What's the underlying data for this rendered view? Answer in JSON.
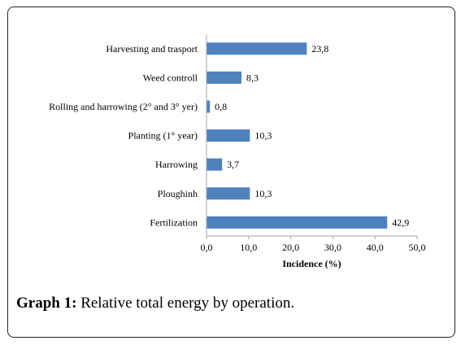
{
  "chart_data": {
    "type": "bar",
    "orientation": "horizontal",
    "categories": [
      "Harvesting and trasport",
      "Weed controll",
      "Rolling and harrowing (2° and 3° yer)",
      "Planting (1° year)",
      "Harrowing",
      "Ploughinh",
      "Fertilization"
    ],
    "values": [
      23.8,
      8.3,
      0.8,
      10.3,
      3.7,
      10.3,
      42.9
    ],
    "value_labels": [
      "23,8",
      "8,3",
      "0,8",
      "10,3",
      "3,7",
      "10,3",
      "42,9"
    ],
    "xlabel": "Incidence (%)",
    "ylabel": "",
    "xlim": [
      0,
      50
    ],
    "x_ticks": [
      0,
      10,
      20,
      30,
      40,
      50
    ],
    "x_tick_labels": [
      "0,0",
      "10,0",
      "20,0",
      "30,0",
      "40,0",
      "50,0"
    ],
    "grid": false,
    "bar_color": "#4f81bd"
  },
  "caption": {
    "label": "Graph 1:",
    "text": "Relative total energy by operation."
  }
}
